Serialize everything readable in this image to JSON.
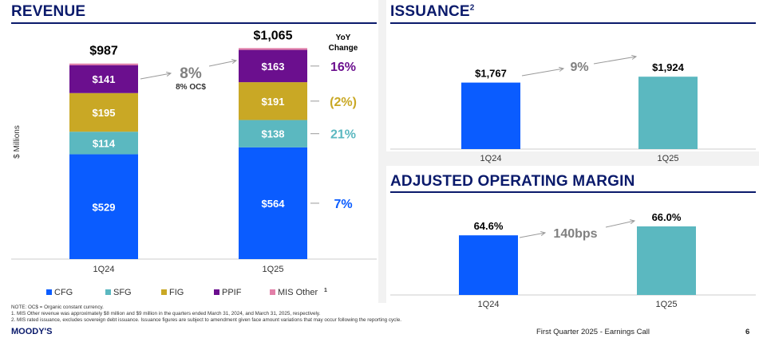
{
  "colors": {
    "CFG": "#0a5cff",
    "SFG": "#5bb8c0",
    "FIG": "#c9a825",
    "PPIF": "#6b0f8e",
    "MIS_Other": "#e27fa8",
    "navy": "#0a1a6b",
    "gray": "#808080"
  },
  "revenue": {
    "title": "REVENUE",
    "ylabel": "$ Millions",
    "yoy_header_line1": "YoY",
    "yoy_header_line2": "Change",
    "change_label": "8%",
    "change_sub": "8% OC$",
    "legend": [
      {
        "key": "CFG",
        "label": "CFG"
      },
      {
        "key": "SFG",
        "label": "SFG"
      },
      {
        "key": "FIG",
        "label": "FIG"
      },
      {
        "key": "PPIF",
        "label": "PPIF"
      },
      {
        "key": "MIS_Other",
        "label": "MIS Other",
        "sup": "1"
      }
    ]
  },
  "issuance": {
    "title": "ISSUANCE",
    "title_sup": "2",
    "change_label": "9%"
  },
  "margin": {
    "title": "ADJUSTED OPERATING MARGIN",
    "change_label": "140bps"
  },
  "chart_data": [
    {
      "type": "bar",
      "stacked": true,
      "title": "REVENUE",
      "ylabel": "$ Millions",
      "categories": [
        "1Q24",
        "1Q25"
      ],
      "totals": [
        "$987",
        "$1,065"
      ],
      "series": [
        {
          "name": "CFG",
          "values": [
            529,
            564
          ],
          "labels": [
            "$529",
            "$564"
          ],
          "yoy": "7%"
        },
        {
          "name": "SFG",
          "values": [
            114,
            138
          ],
          "labels": [
            "$114",
            "$138"
          ],
          "yoy": "21%"
        },
        {
          "name": "FIG",
          "values": [
            195,
            191
          ],
          "labels": [
            "$195",
            "$191"
          ],
          "yoy": "(2%)"
        },
        {
          "name": "PPIF",
          "values": [
            141,
            163
          ],
          "labels": [
            "$141",
            "$163"
          ],
          "yoy": "16%"
        },
        {
          "name": "MIS Other",
          "values": [
            8,
            9
          ]
        }
      ],
      "legend_position": "bottom"
    },
    {
      "type": "bar",
      "title": "ISSUANCE",
      "categories": [
        "1Q24",
        "1Q25"
      ],
      "values": [
        1767,
        1924
      ],
      "labels": [
        "$1,767",
        "$1,924"
      ],
      "colors": [
        "#0a5cff",
        "#5bb8c0"
      ],
      "ylim": [
        0,
        2100
      ]
    },
    {
      "type": "bar",
      "title": "ADJUSTED OPERATING MARGIN",
      "categories": [
        "1Q24",
        "1Q25"
      ],
      "values": [
        64.6,
        66.0
      ],
      "labels": [
        "64.6%",
        "66.0%"
      ],
      "colors": [
        "#0a5cff",
        "#5bb8c0"
      ]
    }
  ],
  "notes": [
    "NOTE: OC$ = Organic constant currency.",
    "1.      MIS Other revenue was approximately $8 million and $9 million in the quarters ended March 31, 2024, and March 31, 2025, respectively.",
    "2.      MIS rated issuance, excludes sovereign debt issuance. Issuance figures are subject to amendment given face amount variations that may occur following the reporting cycle."
  ],
  "footer": {
    "logo": "MOODY'S",
    "text": "First Quarter 2025 - Earnings Call",
    "page": "6"
  }
}
